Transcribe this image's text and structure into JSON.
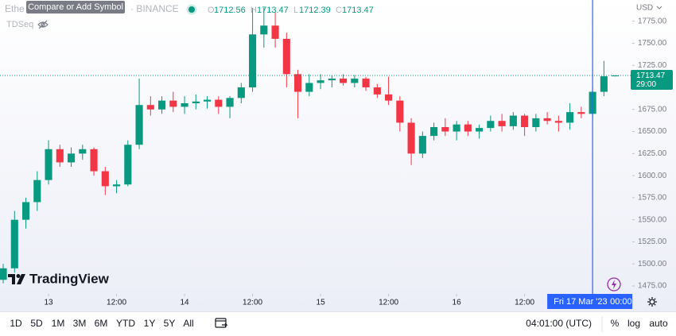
{
  "header": {
    "symbol": "Ethe",
    "exchange": "· BINANCE",
    "tooltip": "Compare or Add Symbol",
    "open_label": "O",
    "open": 1712.56,
    "high_label": "H",
    "high": 1713.47,
    "low_label": "L",
    "low": 1712.39,
    "close_label": "C",
    "close": 1713.47,
    "indicator": "TDSeq"
  },
  "chart_data": {
    "type": "candlestick",
    "currency": "USD",
    "up_color": "#089981",
    "down_color": "#f23645",
    "x": [
      "2023-03-12 16:00",
      "2023-03-12 18:00",
      "2023-03-12 20:00",
      "2023-03-12 22:00",
      "2023-03-13 00:00",
      "2023-03-13 02:00",
      "2023-03-13 04:00",
      "2023-03-13 06:00",
      "2023-03-13 08:00",
      "2023-03-13 10:00",
      "2023-03-13 12:00",
      "2023-03-13 14:00",
      "2023-03-13 16:00",
      "2023-03-13 18:00",
      "2023-03-13 20:00",
      "2023-03-13 22:00",
      "2023-03-14 00:00",
      "2023-03-14 02:00",
      "2023-03-14 04:00",
      "2023-03-14 06:00",
      "2023-03-14 08:00",
      "2023-03-14 10:00",
      "2023-03-14 12:00",
      "2023-03-14 14:00",
      "2023-03-14 16:00",
      "2023-03-14 18:00",
      "2023-03-14 20:00",
      "2023-03-14 22:00",
      "2023-03-15 00:00",
      "2023-03-15 02:00",
      "2023-03-15 04:00",
      "2023-03-15 06:00",
      "2023-03-15 08:00",
      "2023-03-15 10:00",
      "2023-03-15 12:00",
      "2023-03-15 14:00",
      "2023-03-15 16:00",
      "2023-03-15 18:00",
      "2023-03-15 20:00",
      "2023-03-15 22:00",
      "2023-03-16 00:00",
      "2023-03-16 02:00",
      "2023-03-16 04:00",
      "2023-03-16 06:00",
      "2023-03-16 08:00",
      "2023-03-16 10:00",
      "2023-03-16 12:00",
      "2023-03-16 14:00",
      "2023-03-16 16:00",
      "2023-03-16 18:00",
      "2023-03-16 20:00",
      "2023-03-16 22:00",
      "2023-03-17 00:00",
      "2023-03-17 02:00",
      "2023-03-17 04:00"
    ],
    "open": [
      1482,
      1495,
      1550,
      1570,
      1595,
      1630,
      1615,
      1625,
      1630,
      1605,
      1588,
      1590,
      1635,
      1680,
      1675,
      1685,
      1678,
      1682,
      1684,
      1686,
      1678,
      1688,
      1700,
      1760,
      1770,
      1755,
      1715,
      1695,
      1705,
      1708,
      1710,
      1705,
      1710,
      1700,
      1692,
      1685,
      1660,
      1625,
      1645,
      1655,
      1650,
      1658,
      1650,
      1654,
      1662,
      1656,
      1668,
      1655,
      1665,
      1662,
      1660,
      1672,
      1670,
      1695,
      1712.56
    ],
    "high": [
      1500,
      1560,
      1575,
      1605,
      1640,
      1635,
      1632,
      1635,
      1632,
      1610,
      1595,
      1640,
      1710,
      1690,
      1690,
      1695,
      1690,
      1692,
      1690,
      1690,
      1690,
      1705,
      1790,
      1790,
      1785,
      1762,
      1720,
      1715,
      1715,
      1714,
      1715,
      1714,
      1712,
      1704,
      1712,
      1690,
      1665,
      1650,
      1660,
      1665,
      1662,
      1662,
      1658,
      1668,
      1670,
      1672,
      1670,
      1670,
      1672,
      1668,
      1682,
      1678,
      1700,
      1730,
      1713.47
    ],
    "low": [
      1478,
      1490,
      1540,
      1560,
      1590,
      1610,
      1610,
      1618,
      1600,
      1578,
      1580,
      1588,
      1630,
      1668,
      1670,
      1672,
      1670,
      1675,
      1676,
      1670,
      1665,
      1682,
      1695,
      1745,
      1745,
      1700,
      1665,
      1690,
      1698,
      1700,
      1702,
      1700,
      1696,
      1688,
      1680,
      1650,
      1612,
      1620,
      1640,
      1645,
      1640,
      1645,
      1642,
      1650,
      1650,
      1652,
      1645,
      1650,
      1658,
      1650,
      1652,
      1665,
      1665,
      1690,
      1712.39
    ],
    "close": [
      1495,
      1550,
      1570,
      1595,
      1630,
      1615,
      1625,
      1630,
      1605,
      1588,
      1590,
      1635,
      1680,
      1675,
      1685,
      1678,
      1682,
      1684,
      1686,
      1678,
      1688,
      1700,
      1760,
      1770,
      1755,
      1715,
      1695,
      1705,
      1708,
      1710,
      1705,
      1710,
      1700,
      1692,
      1685,
      1660,
      1625,
      1645,
      1655,
      1650,
      1658,
      1650,
      1654,
      1662,
      1656,
      1668,
      1655,
      1665,
      1662,
      1660,
      1672,
      1670,
      1695,
      1712.56,
      1713.47
    ],
    "xlim": [
      "2023-03-12 15:26",
      "2023-03-17 07:00"
    ],
    "xticks": [
      {
        "value": "2023-03-13 00:00",
        "label": "13"
      },
      {
        "value": "2023-03-13 12:00",
        "label": "12:00"
      },
      {
        "value": "2023-03-14 00:00",
        "label": "14"
      },
      {
        "value": "2023-03-14 12:00",
        "label": "12:00"
      },
      {
        "value": "2023-03-15 00:00",
        "label": "15"
      },
      {
        "value": "2023-03-15 12:00",
        "label": "12:00"
      },
      {
        "value": "2023-03-16 00:00",
        "label": "16"
      },
      {
        "value": "2023-03-16 12:00",
        "label": "12:00"
      }
    ],
    "ylim": [
      1466,
      1799
    ],
    "yticks": [
      {
        "value": 1475,
        "label": "1475.00"
      },
      {
        "value": 1500,
        "label": "1500.00"
      },
      {
        "value": 1525,
        "label": "1525.00"
      },
      {
        "value": 1550,
        "label": "1550.00"
      },
      {
        "value": 1575,
        "label": "1575.00"
      },
      {
        "value": 1600,
        "label": "1600.00"
      },
      {
        "value": 1625,
        "label": "1625.00"
      },
      {
        "value": 1650,
        "label": "1650.00"
      },
      {
        "value": 1675,
        "label": "1675.00"
      },
      {
        "value": 1700,
        "label": "1700.00"
      },
      {
        "value": 1725,
        "label": "1725.00"
      },
      {
        "value": 1750,
        "label": "1750.00"
      },
      {
        "value": 1775,
        "label": "1775.00"
      }
    ],
    "price_label": {
      "value": 1713.47,
      "countdown": "29:00"
    },
    "crosshair": {
      "x": "2023-03-17 00:00",
      "date_label": "Fri 17 Mar '23",
      "time_label": "00:00"
    }
  },
  "branding": "TradingView",
  "toolbar": {
    "ranges": [
      "1D",
      "5D",
      "1M",
      "3M",
      "6M",
      "YTD",
      "1Y",
      "5Y",
      "All"
    ],
    "clock": "04:01:00 (UTC)",
    "percent": "%",
    "log": "log",
    "auto": "auto"
  }
}
